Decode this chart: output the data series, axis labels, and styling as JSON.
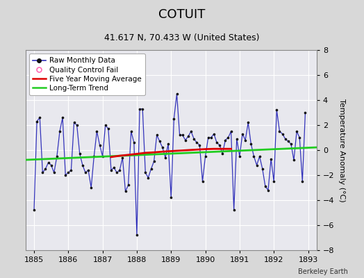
{
  "title": "COTUIT",
  "subtitle": "41.617 N, 70.433 W (United States)",
  "ylabel": "Temperature Anomaly (°C)",
  "credit": "Berkeley Earth",
  "xlim": [
    1884.75,
    1893.25
  ],
  "ylim": [
    -8,
    8
  ],
  "yticks": [
    -8,
    -6,
    -4,
    -2,
    0,
    2,
    4,
    6,
    8
  ],
  "xticks": [
    1885,
    1886,
    1887,
    1888,
    1889,
    1890,
    1891,
    1892,
    1893
  ],
  "bg_color": "#d8d8d8",
  "plot_bg_color": "#e8e8ee",
  "grid_color": "#ffffff",
  "raw_color": "#3333bb",
  "marker_color": "#111111",
  "moving_avg_color": "#dd0000",
  "trend_color": "#22cc22",
  "raw_monthly_x": [
    1885.0,
    1885.083,
    1885.167,
    1885.25,
    1885.333,
    1885.417,
    1885.5,
    1885.583,
    1885.667,
    1885.75,
    1885.833,
    1885.917,
    1886.0,
    1886.083,
    1886.167,
    1886.25,
    1886.333,
    1886.417,
    1886.5,
    1886.583,
    1886.667,
    1886.75,
    1886.833,
    1886.917,
    1887.0,
    1887.083,
    1887.167,
    1887.25,
    1887.333,
    1887.417,
    1887.5,
    1887.583,
    1887.667,
    1887.75,
    1887.833,
    1887.917,
    1888.0,
    1888.083,
    1888.167,
    1888.25,
    1888.333,
    1888.417,
    1888.5,
    1888.583,
    1888.667,
    1888.75,
    1888.833,
    1888.917,
    1889.0,
    1889.083,
    1889.167,
    1889.25,
    1889.333,
    1889.417,
    1889.5,
    1889.583,
    1889.667,
    1889.75,
    1889.833,
    1889.917,
    1890.0,
    1890.083,
    1890.167,
    1890.25,
    1890.333,
    1890.417,
    1890.5,
    1890.583,
    1890.667,
    1890.75,
    1890.833,
    1890.917,
    1891.0,
    1891.083,
    1891.167,
    1891.25,
    1891.333,
    1891.417,
    1891.5,
    1891.583,
    1891.667,
    1891.75,
    1891.833,
    1891.917,
    1892.0,
    1892.083,
    1892.167,
    1892.25,
    1892.333,
    1892.417,
    1892.5,
    1892.583,
    1892.667,
    1892.75,
    1892.833,
    1892.917
  ],
  "raw_monthly_y": [
    -4.8,
    2.3,
    2.6,
    -1.8,
    -1.5,
    -1.0,
    -1.2,
    -1.8,
    -0.5,
    1.5,
    2.6,
    -2.0,
    -1.8,
    -1.6,
    2.2,
    2.0,
    -0.3,
    -1.2,
    -1.8,
    -1.6,
    -3.0,
    -0.5,
    1.5,
    0.4,
    -0.5,
    2.0,
    1.7,
    -1.6,
    -1.4,
    -1.8,
    -1.6,
    -0.6,
    -3.3,
    -2.8,
    1.5,
    0.6,
    -6.8,
    3.3,
    3.3,
    -1.8,
    -2.2,
    -1.5,
    -0.9,
    1.2,
    0.7,
    0.2,
    -0.6,
    0.5,
    -3.8,
    2.5,
    4.5,
    1.2,
    1.2,
    0.8,
    1.1,
    1.5,
    0.9,
    0.6,
    0.4,
    -2.5,
    -0.5,
    1.0,
    1.0,
    1.3,
    0.6,
    0.4,
    -0.3,
    0.8,
    1.0,
    1.5,
    -4.8,
    0.9,
    -0.5,
    1.3,
    0.8,
    2.2,
    0.5,
    -0.5,
    -1.2,
    -0.5,
    -1.5,
    -2.9,
    -3.2,
    -0.7,
    -2.5,
    3.2,
    1.5,
    1.3,
    0.9,
    0.7,
    0.5,
    -0.8,
    1.5,
    1.0,
    -2.5,
    3.0
  ],
  "five_year_avg_x": [
    1887.25,
    1887.5,
    1887.75,
    1888.0,
    1888.25,
    1888.5,
    1888.75,
    1889.0,
    1889.25,
    1889.5,
    1889.75,
    1890.0,
    1890.25,
    1890.5,
    1890.75
  ],
  "five_year_avg_y": [
    -0.55,
    -0.45,
    -0.38,
    -0.3,
    -0.22,
    -0.18,
    -0.12,
    -0.08,
    -0.04,
    0.0,
    0.04,
    0.08,
    0.1,
    0.1,
    0.1
  ],
  "trend_x": [
    1884.75,
    1893.25
  ],
  "trend_y": [
    -0.78,
    0.22
  ],
  "title_fontsize": 13,
  "subtitle_fontsize": 9,
  "tick_fontsize": 8,
  "ylabel_fontsize": 8,
  "legend_fontsize": 7.5,
  "credit_fontsize": 7
}
